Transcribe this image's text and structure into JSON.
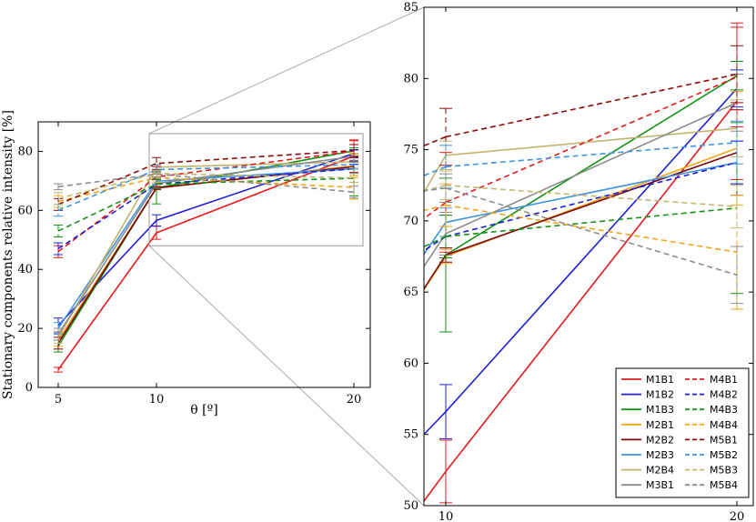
{
  "colors": {
    "B1": "#e41a1c",
    "B2": "#1f1fd6",
    "B3": "#169116",
    "M2B1": "#f2a61a",
    "M2B2": "#7a0a0a",
    "M2B3": "#3f93e0",
    "M2B4": "#c2b56e",
    "M3B1": "#8c8c8c",
    "M4B1": "#e41a1c",
    "M4B2": "#1f1fd6",
    "M4B3": "#169116",
    "M4B4": "#f2a61a",
    "M5B1": "#8b0a0a",
    "M5B2": "#3f93e0",
    "M5B3": "#c2b56e",
    "M5B4": "#8c8c8c"
  },
  "chart_data": [
    {
      "type": "line",
      "panel": "overview",
      "x": [
        5,
        10,
        20
      ],
      "xlabel": "θ [º]",
      "ylabel": "Stationary components relative intensity [%]",
      "xticks": [
        "5",
        "10",
        "20"
      ],
      "yticks": [
        "0",
        "20",
        "40",
        "60",
        "80"
      ],
      "ylim": [
        0,
        90
      ],
      "zoom_box": {
        "x": [
          9.1,
          20.6
        ],
        "y": [
          48,
          86
        ]
      },
      "series_ref": "series"
    },
    {
      "type": "line",
      "panel": "zoom",
      "x": [
        10,
        20
      ],
      "xticks": [
        "10",
        "20"
      ],
      "yticks": [
        "50",
        "55",
        "60",
        "65",
        "70",
        "75",
        "80",
        "85"
      ],
      "ylim": [
        50,
        85
      ],
      "series_ref": "series"
    }
  ],
  "series": [
    {
      "name": "M1B1",
      "dash": false,
      "color_key": "B1",
      "values": [
        6,
        52.4,
        78.4
      ],
      "err": [
        0.8,
        2.2,
        5.5
      ]
    },
    {
      "name": "M1B2",
      "dash": false,
      "color_key": "B2",
      "values": [
        21,
        56.6,
        79.3
      ],
      "err": [
        2.5,
        1.9,
        1.3
      ]
    },
    {
      "name": "M1B3",
      "dash": false,
      "color_key": "B3",
      "values": [
        14,
        67.6,
        80.2
      ],
      "err": [
        2,
        5.4,
        1
      ]
    },
    {
      "name": "M2B1",
      "dash": false,
      "color_key": "M2B1",
      "values": [
        16,
        67.5,
        75.1
      ],
      "err": [
        2,
        0.5,
        4
      ]
    },
    {
      "name": "M2B2",
      "dash": false,
      "color_key": "M2B2",
      "values": [
        15,
        67.6,
        74.8
      ],
      "err": [
        2,
        0.5,
        3
      ]
    },
    {
      "name": "M2B3",
      "dash": false,
      "color_key": "M2B3",
      "values": [
        20,
        69.9,
        74.1
      ],
      "err": [
        2,
        1,
        1.5
      ]
    },
    {
      "name": "M2B4",
      "dash": false,
      "color_key": "M2B4",
      "values": [
        17,
        74.6,
        76.5
      ],
      "err": [
        2,
        1,
        2
      ]
    },
    {
      "name": "M3B1",
      "dash": false,
      "color_key": "M3B1",
      "values": [
        18,
        69.1,
        78.3
      ],
      "err": [
        2,
        1.5,
        2
      ]
    },
    {
      "name": "M4B1",
      "dash": true,
      "color_key": "M4B1",
      "values": [
        46,
        71.3,
        80.1
      ],
      "err": [
        2,
        3.5,
        3.5
      ]
    },
    {
      "name": "M4B2",
      "dash": true,
      "color_key": "M4B2",
      "values": [
        47,
        68.9,
        74.1
      ],
      "err": [
        2,
        1.5,
        1.5
      ]
    },
    {
      "name": "M4B3",
      "dash": true,
      "color_key": "M4B3",
      "values": [
        53,
        68.9,
        70.9
      ],
      "err": [
        2,
        1.5,
        6
      ]
    },
    {
      "name": "M4B4",
      "dash": true,
      "color_key": "M4B4",
      "values": [
        63,
        71.1,
        67.8
      ],
      "err": [
        2,
        1.5,
        4
      ]
    },
    {
      "name": "M5B1",
      "dash": true,
      "color_key": "M5B1",
      "values": [
        62,
        75.9,
        80.3
      ],
      "err": [
        2,
        2,
        2
      ]
    },
    {
      "name": "M5B2",
      "dash": true,
      "color_key": "M5B2",
      "values": [
        60,
        73.8,
        75.5
      ],
      "err": [
        2,
        1.5,
        1.5
      ]
    },
    {
      "name": "M5B3",
      "dash": true,
      "color_key": "M5B3",
      "values": [
        64,
        72.5,
        71
      ],
      "err": [
        2,
        1,
        1.5
      ]
    },
    {
      "name": "M5B4",
      "dash": true,
      "color_key": "M5B4",
      "values": [
        68,
        72.3,
        66.2
      ],
      "err": [
        1,
        1,
        2
      ]
    }
  ],
  "legend": {
    "left": [
      "M1B1",
      "M1B2",
      "M1B3",
      "M2B1",
      "M2B2",
      "M2B3",
      "M2B4",
      "M3B1"
    ],
    "right": [
      "M4B1",
      "M4B2",
      "M4B3",
      "M4B4",
      "M5B1",
      "M5B2",
      "M5B3",
      "M5B4"
    ]
  }
}
